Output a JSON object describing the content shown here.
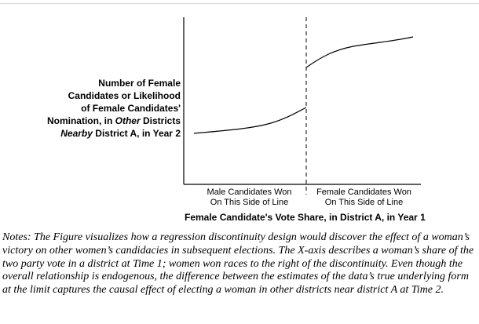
{
  "figure": {
    "ylabel_lines": [
      "Number of Female",
      "Candidates or Likelihood",
      "of Female Candidates'",
      "Nomination, in ",
      "Other",
      " Districts",
      "Nearby",
      " District A, in Year 2"
    ],
    "left_region_lines": [
      "Male Candidates Won",
      "On This Side of Line"
    ],
    "right_region_lines": [
      "Female Candidates Won",
      "On This Side of Line"
    ],
    "xlabel": "Female Candidate's Vote Share, in District A, in Year 1"
  },
  "notes": {
    "text": "Notes: The Figure visualizes how a regression discontinuity design would discover the effect of a woman’s victory on other women’s candidacies in subsequent elections. The X-axis describes a woman’s share of the two party vote in a district at Time 1; women won races to the right of the discontinuity. Even though the overall relationship is endogenous, the difference between the estimates of the data’s true underlying form at the limit captures the causal effect of electing a woman in other districts near district A at Time 2."
  }
}
